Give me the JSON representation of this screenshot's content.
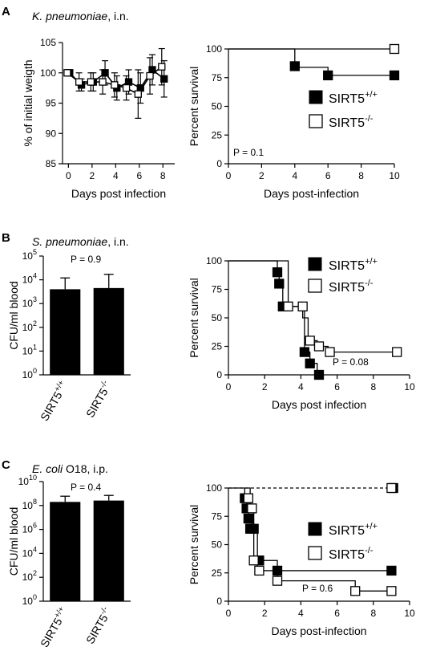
{
  "panels": [
    {
      "letter": "A",
      "title_italic": "K. pneumoniae",
      "title_rest": ", i.n.",
      "p_value": "P = 0.1",
      "legend": {
        "wt": "SIRT5",
        "wt_sup": "+/+",
        "ko": "SIRT5",
        "ko_sup": "-/-"
      }
    },
    {
      "letter": "B",
      "title_italic": "S. pneumoniae",
      "title_rest": ", i.n.",
      "p_value_bar": "P = 0.9",
      "p_value_surv": "P = 0.08",
      "legend": {
        "wt": "SIRT5",
        "wt_sup": "+/+",
        "ko": "SIRT5",
        "ko_sup": "-/-"
      }
    },
    {
      "letter": "C",
      "title_italic": "E. coli",
      "title_rest": " O18, i.p.",
      "p_value_bar": "P = 0.4",
      "p_value_surv": "P = 0.6",
      "legend": {
        "wt": "SIRT5",
        "wt_sup": "+/+",
        "ko": "SIRT5",
        "ko_sup": "-/-"
      }
    }
  ],
  "chart_data": [
    {
      "panel": "A",
      "type": "line",
      "xlabel": "Days post infection",
      "ylabel": "% of initial weigth",
      "xlim": [
        -0.5,
        9
      ],
      "ylim": [
        85,
        105
      ],
      "xticks": [
        0,
        2,
        4,
        6,
        8
      ],
      "yticks": [
        85,
        90,
        95,
        100,
        105
      ],
      "x": [
        0,
        1,
        2,
        3,
        4,
        5,
        6,
        7,
        8
      ],
      "series": [
        {
          "marker": "filled",
          "values": [
            100,
            98,
            98.5,
            100,
            97.5,
            98.5,
            97.5,
            100.5,
            99
          ],
          "err": [
            0.3,
            1,
            1.5,
            2,
            2,
            2,
            2.5,
            2.5,
            3
          ]
        },
        {
          "marker": "open",
          "values": [
            100,
            98.5,
            98.5,
            98.5,
            98,
            97.5,
            96.5,
            99.5,
            101
          ],
          "err": [
            0.3,
            1.5,
            1.5,
            2,
            2,
            2,
            4,
            3,
            3
          ]
        }
      ]
    },
    {
      "panel": "A",
      "type": "line",
      "xlabel": "Days post-infection",
      "ylabel": "Percent survival",
      "xlim": [
        0,
        10
      ],
      "ylim": [
        0,
        100
      ],
      "xticks": [
        0,
        2,
        4,
        6,
        8,
        10
      ],
      "yticks": [
        0,
        25,
        50,
        75,
        100
      ],
      "series": [
        {
          "marker": "filled",
          "step": [
            [
              0,
              100
            ],
            [
              4,
              100
            ],
            [
              4,
              84
            ],
            [
              6,
              84
            ],
            [
              6,
              77
            ],
            [
              10,
              77
            ]
          ],
          "points": [
            [
              4,
              85
            ],
            [
              6,
              77
            ],
            [
              10,
              77
            ]
          ]
        },
        {
          "marker": "open",
          "step": [
            [
              0,
              100
            ],
            [
              10,
              100
            ]
          ],
          "points": [
            [
              10,
              100
            ]
          ]
        }
      ]
    },
    {
      "panel": "B",
      "type": "bar",
      "ylabel": "CFU/ml blood",
      "categories": [
        "SIRT5+/+",
        "SIRT5-/-"
      ],
      "values": [
        4000,
        4500
      ],
      "err_upper": [
        12000,
        17000
      ],
      "log_ylim_exp": [
        0,
        5
      ],
      "yticks_exp": [
        0,
        1,
        2,
        3,
        4,
        5
      ]
    },
    {
      "panel": "B",
      "type": "line",
      "xlabel": "Days post infection",
      "ylabel": "Percent survival",
      "xlim": [
        0,
        10
      ],
      "ylim": [
        0,
        100
      ],
      "xticks": [
        0,
        2,
        4,
        6,
        8,
        10
      ],
      "yticks": [
        0,
        25,
        50,
        75,
        100
      ],
      "series": [
        {
          "marker": "filled",
          "step": [
            [
              0,
              100
            ],
            [
              2.7,
              100
            ],
            [
              2.7,
              90
            ],
            [
              2.8,
              90
            ],
            [
              2.8,
              80
            ],
            [
              3,
              80
            ],
            [
              3,
              60
            ],
            [
              4.2,
              60
            ],
            [
              4.2,
              20
            ],
            [
              4.5,
              20
            ],
            [
              4.5,
              10
            ],
            [
              4.9,
              10
            ],
            [
              4.9,
              0
            ],
            [
              5.2,
              0
            ]
          ],
          "points": [
            [
              2.7,
              90
            ],
            [
              2.8,
              80
            ],
            [
              3,
              60
            ],
            [
              4.2,
              20
            ],
            [
              4.5,
              10
            ],
            [
              5,
              0
            ]
          ]
        },
        {
          "marker": "open",
          "step": [
            [
              0,
              100
            ],
            [
              3.3,
              100
            ],
            [
              3.3,
              60
            ],
            [
              4.1,
              60
            ],
            [
              4.1,
              50
            ],
            [
              4.4,
              50
            ],
            [
              4.4,
              30
            ],
            [
              4.9,
              30
            ],
            [
              4.9,
              25
            ],
            [
              5.5,
              25
            ],
            [
              5.5,
              20
            ],
            [
              9.3,
              20
            ]
          ],
          "points": [
            [
              3.3,
              60
            ],
            [
              4.1,
              60
            ],
            [
              4.5,
              30
            ],
            [
              5,
              25
            ],
            [
              5.6,
              20
            ],
            [
              9.3,
              20
            ]
          ]
        }
      ]
    },
    {
      "panel": "C",
      "type": "bar",
      "ylabel": "CFU/ml blood",
      "categories": [
        "SIRT5+/+",
        "SIRT5-/-"
      ],
      "values": [
        200000000,
        260000000
      ],
      "err_upper": [
        600000000,
        700000000
      ],
      "log_ylim_exp": [
        0,
        10
      ],
      "yticks_exp": [
        0,
        2,
        4,
        6,
        8,
        10
      ]
    },
    {
      "panel": "C",
      "type": "line",
      "xlabel": "Days post-infection",
      "ylabel": "Percent survival",
      "xlim": [
        0,
        10
      ],
      "ylim": [
        0,
        100
      ],
      "xticks": [
        0,
        2,
        4,
        6,
        8,
        10
      ],
      "yticks": [
        0,
        25,
        50,
        75,
        100
      ],
      "series": [
        {
          "marker": "filled",
          "step": [
            [
              0.9,
              100
            ],
            [
              0.9,
              91
            ],
            [
              1,
              91
            ],
            [
              1,
              82
            ],
            [
              1.1,
              82
            ],
            [
              1.1,
              73
            ],
            [
              1.3,
              73
            ],
            [
              1.3,
              64
            ],
            [
              1.6,
              64
            ],
            [
              1.6,
              36
            ],
            [
              2.7,
              36
            ],
            [
              2.7,
              27
            ],
            [
              9,
              27
            ]
          ],
          "points": [
            [
              0.9,
              91
            ],
            [
              1,
              82
            ],
            [
              1.1,
              73
            ],
            [
              1.2,
              64
            ],
            [
              1.4,
              64
            ],
            [
              1.7,
              36
            ],
            [
              2.7,
              27
            ],
            [
              9,
              27
            ]
          ]
        },
        {
          "marker": "open",
          "step": [
            [
              0,
              100
            ],
            [
              1.2,
              100
            ],
            [
              1.2,
              82
            ],
            [
              1.4,
              82
            ],
            [
              1.4,
              36
            ],
            [
              1.6,
              36
            ],
            [
              1.6,
              27
            ],
            [
              2.7,
              27
            ],
            [
              2.7,
              18
            ],
            [
              7,
              18
            ],
            [
              7,
              9
            ],
            [
              9,
              9
            ]
          ],
          "points": [
            [
              1.1,
              91
            ],
            [
              1.3,
              82
            ],
            [
              1.4,
              36
            ],
            [
              1.7,
              27
            ],
            [
              2.7,
              18
            ],
            [
              7,
              9
            ],
            [
              9,
              9
            ]
          ]
        },
        {
          "marker": "filled",
          "dashed": true,
          "step": [
            [
              0,
              100
            ],
            [
              9,
              100
            ]
          ],
          "points": [
            [
              9.1,
              100
            ]
          ]
        },
        {
          "marker": "open",
          "points": [
            [
              9,
              100
            ]
          ]
        }
      ]
    }
  ]
}
